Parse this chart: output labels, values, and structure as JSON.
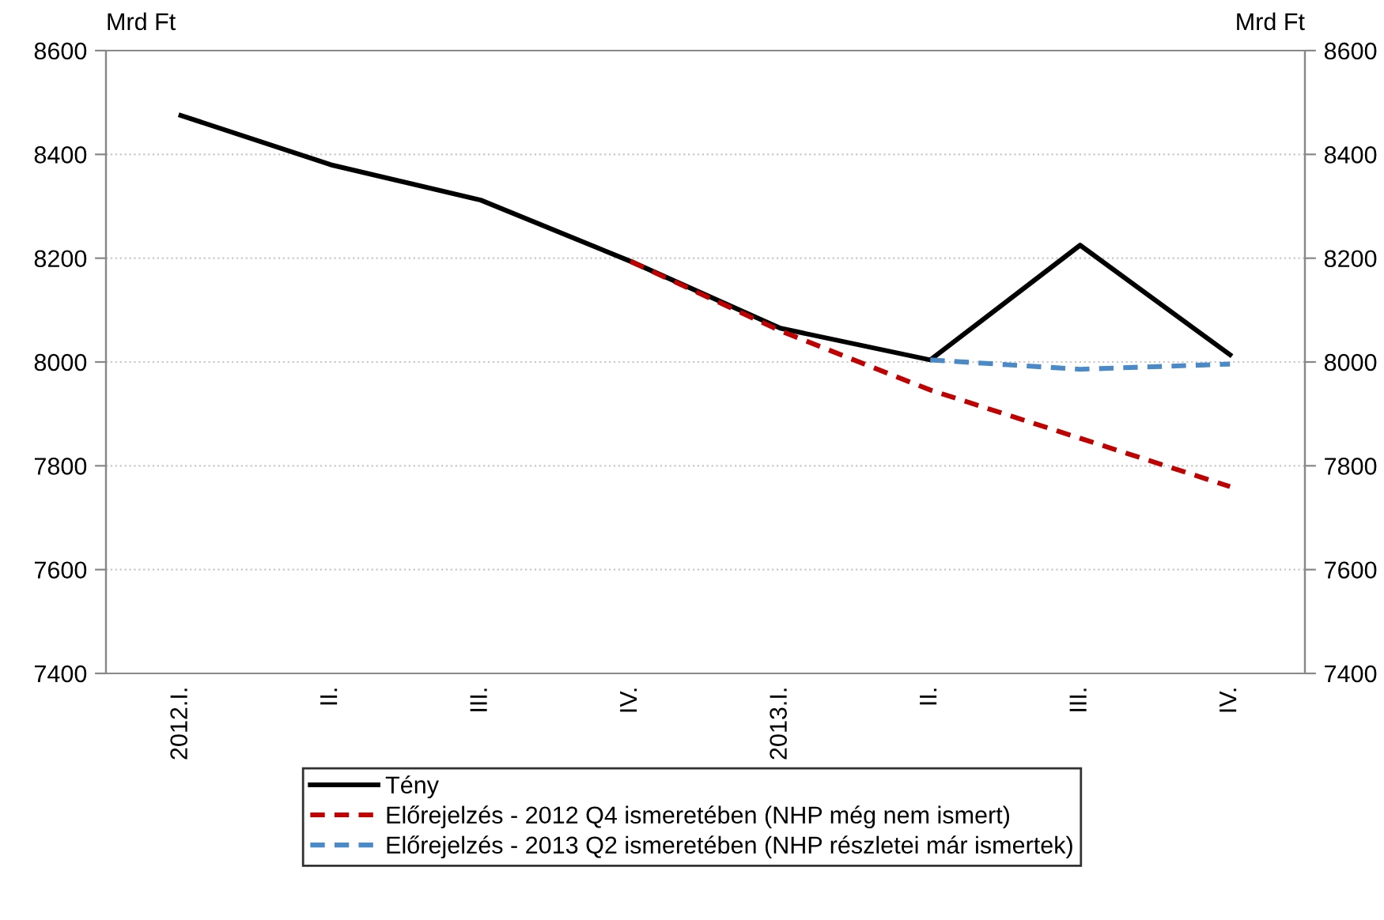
{
  "chart_data": {
    "type": "line",
    "ylabel": "Mrd Ft",
    "y2label": "Mrd Ft",
    "categories": [
      "2012.I.",
      "II.",
      "III.",
      "IV.",
      "2013.I.",
      "II.",
      "III.",
      "IV."
    ],
    "series": [
      {
        "name": "Tény",
        "color": "#000000",
        "line_style": "solid",
        "values": [
          8475,
          8380,
          8312,
          8194,
          8065,
          8004,
          8225,
          8014
        ]
      },
      {
        "name": "Előrejelzés - 2012 Q4 ismeretében (NHP még nem ismert)",
        "color": "#c00000",
        "line_style": "dashed",
        "values": [
          null,
          null,
          null,
          8194,
          8060,
          7946,
          7853,
          7760
        ]
      },
      {
        "name": "Előrejelzés - 2013 Q2 ismeretében (NHP részletei már ismertek)",
        "color": "#4a8ac9",
        "line_style": "dashed",
        "values": [
          null,
          null,
          null,
          null,
          null,
          8004,
          7986,
          7996
        ]
      }
    ],
    "ylim": [
      7400,
      8600
    ],
    "yticks": [
      7400,
      7600,
      7800,
      8000,
      8200,
      8400,
      8600
    ],
    "y2lim": [
      7400,
      8600
    ],
    "y2ticks": [
      7400,
      7600,
      7800,
      8000,
      8200,
      8400,
      8600
    ],
    "grid": "y",
    "legend": "bottom",
    "marker": "none"
  }
}
